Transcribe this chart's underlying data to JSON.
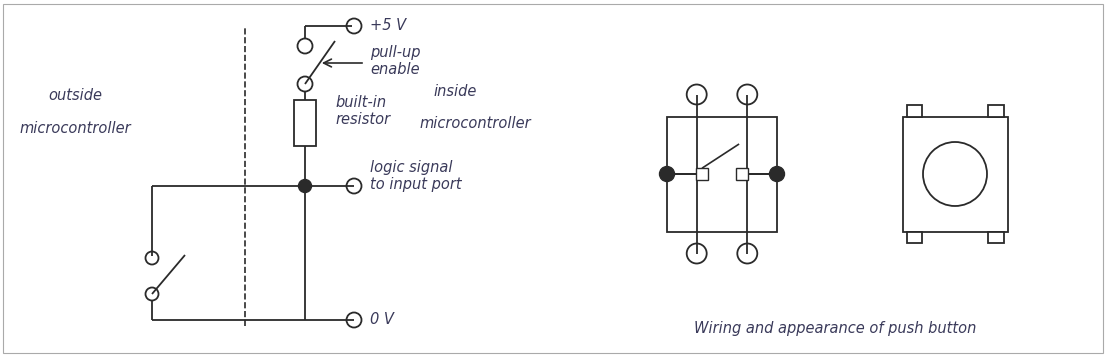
{
  "bg_color": "#ffffff",
  "line_color": "#2a2a2a",
  "text_color": "#3a3a5a",
  "figsize": [
    11.07,
    3.56
  ],
  "dpi": 100,
  "labels": {
    "outside": "outside",
    "microcontroller_left": "microcontroller",
    "inside": "inside",
    "microcontroller_right": "microcontroller",
    "plus5v": "+5 V",
    "pullup": "pull-up\nenable",
    "builtin": "built-in\nresistor",
    "logic_signal": "logic signal\nto input port",
    "zero_v": "0 V",
    "wiring_caption": "Wiring and appearance of push button"
  }
}
